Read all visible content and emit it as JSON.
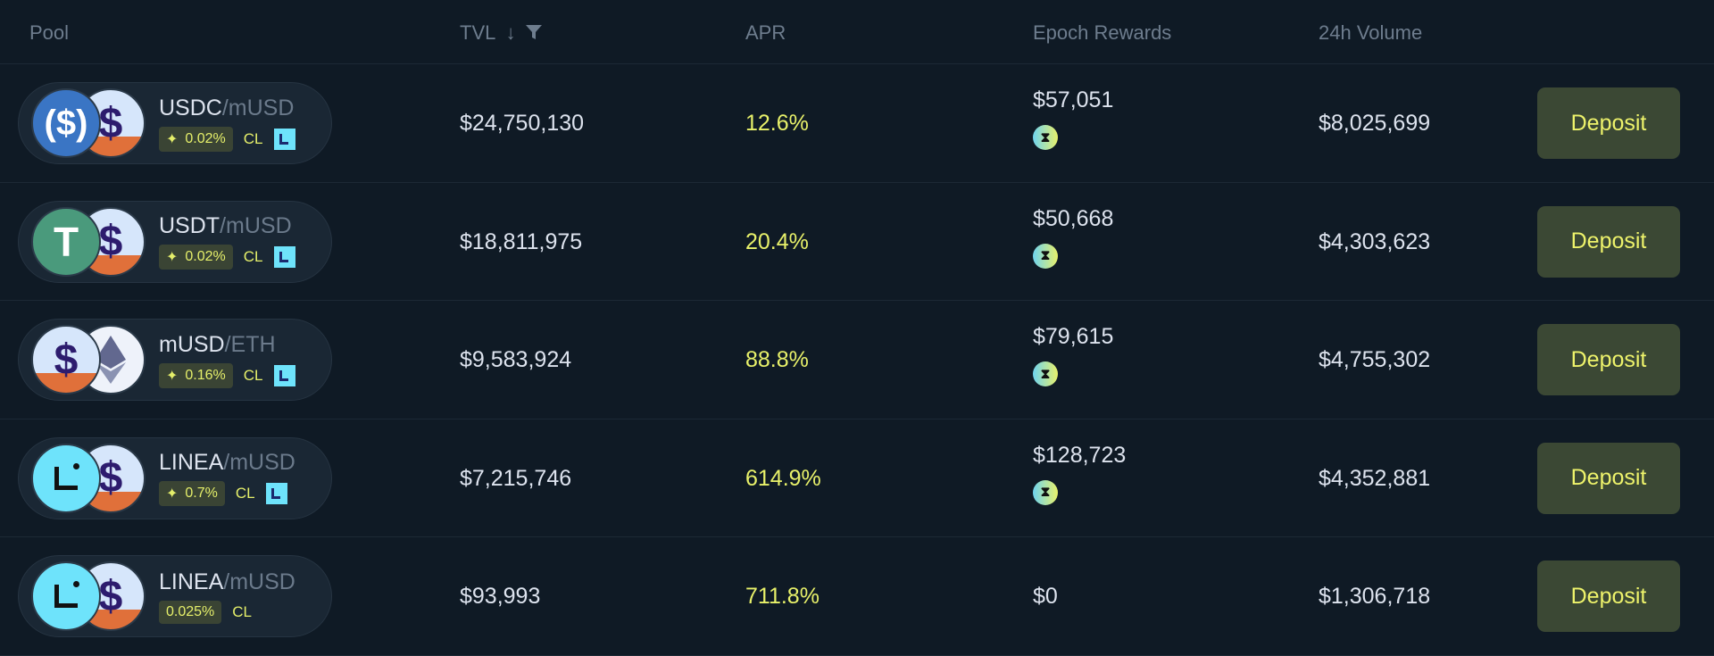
{
  "header": {
    "pool": "Pool",
    "tvl": "TVL",
    "sort_icon": "arrow-down-icon",
    "filter_icon": "filter-icon",
    "apr": "APR",
    "epoch_rewards": "Epoch Rewards",
    "volume": "24h Volume"
  },
  "colors": {
    "background": "#0f1a25",
    "accent": "#e8f16a",
    "button_bg": "#3b4834"
  },
  "rows": [
    {
      "base": "USDC",
      "quote": "/mUSD",
      "fee": "0.02%",
      "type": "CL",
      "boosted": true,
      "linea_badge": true,
      "tvl": "$24,750,130",
      "apr": "12.6%",
      "rewards": "$57,051",
      "reward_token": true,
      "volume": "$8,025,699",
      "action": "Deposit"
    },
    {
      "base": "USDT",
      "quote": "/mUSD",
      "fee": "0.02%",
      "type": "CL",
      "boosted": true,
      "linea_badge": true,
      "tvl": "$18,811,975",
      "apr": "20.4%",
      "rewards": "$50,668",
      "reward_token": true,
      "volume": "$4,303,623",
      "action": "Deposit"
    },
    {
      "base": "mUSD",
      "quote": "/ETH",
      "fee": "0.16%",
      "type": "CL",
      "boosted": true,
      "linea_badge": true,
      "tvl": "$9,583,924",
      "apr": "88.8%",
      "rewards": "$79,615",
      "reward_token": true,
      "volume": "$4,755,302",
      "action": "Deposit"
    },
    {
      "base": "LINEA",
      "quote": "/mUSD",
      "fee": "0.7%",
      "type": "CL",
      "boosted": true,
      "linea_badge": true,
      "tvl": "$7,215,746",
      "apr": "614.9%",
      "rewards": "$128,723",
      "reward_token": true,
      "volume": "$4,352,881",
      "action": "Deposit"
    },
    {
      "base": "LINEA",
      "quote": "/mUSD",
      "fee": "0.025%",
      "type": "CL",
      "boosted": false,
      "linea_badge": false,
      "tvl": "$93,993",
      "apr": "711.8%",
      "rewards": "$0",
      "reward_token": false,
      "volume": "$1,306,718",
      "action": "Deposit"
    }
  ]
}
